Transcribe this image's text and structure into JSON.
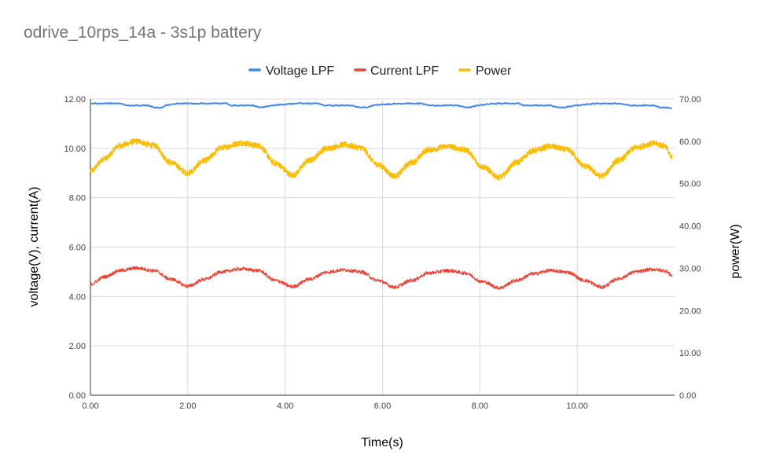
{
  "chart_data": {
    "type": "line",
    "title": "odrive_10rps_14a - 3s1p battery",
    "xlabel": "Time(s)",
    "ylabel_left": "voltage(V), current(A)",
    "ylabel_right": "power(W)",
    "xlim": [
      0,
      12
    ],
    "ylim_left": [
      0,
      12
    ],
    "ylim_right": [
      0,
      70
    ],
    "xticks": [
      "0.00",
      "2.00",
      "4.00",
      "6.00",
      "8.00",
      "10.00"
    ],
    "yticks_left": [
      "0.00",
      "2.00",
      "4.00",
      "6.00",
      "8.00",
      "10.00",
      "12.00"
    ],
    "yticks_right": [
      "0.00",
      "10.00",
      "20.00",
      "30.00",
      "40.00",
      "50.00",
      "60.00",
      "70.00"
    ],
    "grid": true,
    "legend_position": "top",
    "series": [
      {
        "name": "Voltage LPF",
        "axis": "left",
        "color": "#4285f4",
        "x": [
          0.0,
          0.6,
          0.75,
          1.2,
          1.3,
          1.45,
          1.55,
          1.8,
          2.3,
          2.8,
          2.9,
          3.35,
          3.45,
          3.55,
          3.7,
          4.2,
          4.7,
          4.8,
          5.35,
          5.5,
          5.7,
          5.8,
          6.3,
          6.8,
          6.95,
          7.55,
          7.7,
          7.8,
          7.95,
          8.3,
          8.8,
          8.9,
          9.45,
          9.6,
          9.75,
          9.95,
          10.4,
          10.9,
          11.05,
          11.6,
          11.7,
          11.8,
          11.95
        ],
        "values": [
          11.82,
          11.82,
          11.74,
          11.74,
          11.65,
          11.65,
          11.74,
          11.82,
          11.82,
          11.82,
          11.74,
          11.74,
          11.66,
          11.66,
          11.74,
          11.82,
          11.82,
          11.74,
          11.74,
          11.66,
          11.66,
          11.74,
          11.82,
          11.82,
          11.74,
          11.74,
          11.66,
          11.66,
          11.74,
          11.82,
          11.82,
          11.74,
          11.74,
          11.66,
          11.66,
          11.74,
          11.82,
          11.82,
          11.74,
          11.74,
          11.66,
          11.66,
          11.62
        ]
      },
      {
        "name": "Current LPF",
        "axis": "left",
        "color": "#ea4335",
        "x": [
          0.0,
          0.3,
          0.6,
          0.95,
          1.3,
          1.65,
          2.0,
          2.35,
          2.7,
          3.1,
          3.45,
          3.8,
          4.15,
          4.5,
          4.85,
          5.2,
          5.55,
          5.9,
          6.25,
          6.6,
          6.95,
          7.35,
          7.7,
          8.05,
          8.4,
          8.75,
          9.1,
          9.45,
          9.8,
          10.15,
          10.5,
          10.85,
          11.2,
          11.55,
          11.8,
          11.95
        ],
        "values": [
          4.5,
          4.8,
          5.05,
          5.15,
          5.05,
          4.7,
          4.42,
          4.7,
          5.0,
          5.12,
          5.05,
          4.65,
          4.4,
          4.7,
          4.98,
          5.08,
          5.0,
          4.65,
          4.38,
          4.65,
          4.95,
          5.05,
          4.95,
          4.6,
          4.35,
          4.65,
          4.92,
          5.05,
          4.98,
          4.65,
          4.38,
          4.72,
          5.0,
          5.1,
          5.05,
          4.85
        ]
      },
      {
        "name": "Power",
        "axis": "right",
        "color": "#fbbc04",
        "x": [
          0.0,
          0.3,
          0.6,
          0.95,
          1.3,
          1.65,
          2.0,
          2.35,
          2.7,
          3.1,
          3.45,
          3.8,
          4.15,
          4.5,
          4.85,
          5.2,
          5.55,
          5.9,
          6.25,
          6.6,
          6.95,
          7.35,
          7.7,
          8.05,
          8.4,
          8.75,
          9.1,
          9.45,
          9.8,
          10.15,
          10.5,
          10.85,
          11.2,
          11.55,
          11.8,
          11.95
        ],
        "values": [
          53.0,
          56.0,
          59.0,
          60.0,
          59.0,
          55.0,
          52.5,
          55.5,
          58.5,
          59.6,
          59.0,
          54.8,
          52.0,
          55.5,
          58.3,
          59.2,
          58.5,
          54.5,
          51.8,
          55.0,
          58.0,
          58.8,
          58.0,
          54.0,
          51.5,
          55.0,
          57.8,
          58.8,
          58.0,
          54.2,
          51.8,
          55.5,
          58.5,
          59.5,
          59.0,
          56.0
        ]
      }
    ]
  }
}
